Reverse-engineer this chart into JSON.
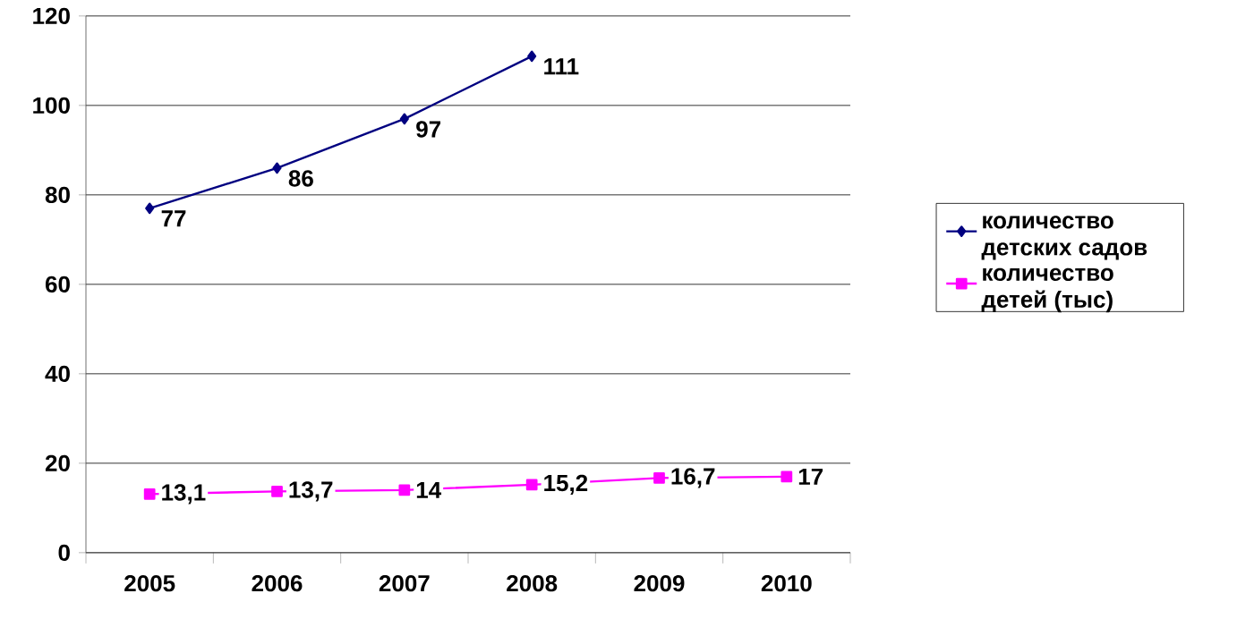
{
  "chart_data": {
    "type": "line",
    "categories": [
      "2005",
      "2006",
      "2007",
      "2008",
      "2009",
      "2010"
    ],
    "ylim": [
      0,
      120
    ],
    "yticks": [
      0,
      20,
      40,
      60,
      80,
      100,
      120
    ],
    "grid": "y",
    "legend": "right",
    "series": [
      {
        "name": "количество детских садов",
        "color": "#000080",
        "marker": "diamond",
        "values": [
          77,
          86,
          97,
          111,
          null,
          null
        ],
        "value_labels": [
          "77",
          "86",
          "97",
          "111",
          null,
          null
        ]
      },
      {
        "name": "количество детей (тыс)",
        "color": "#ff00ff",
        "marker": "square",
        "values": [
          13.1,
          13.7,
          14,
          15.2,
          16.7,
          17
        ],
        "value_labels": [
          "13,1",
          "13,7",
          "14",
          "15,2",
          "16,7",
          "17"
        ]
      }
    ]
  }
}
